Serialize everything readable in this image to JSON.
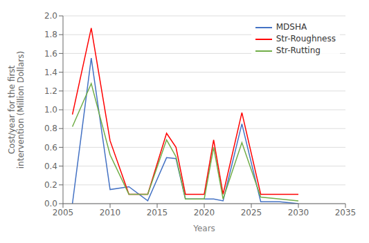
{
  "chart_data": {
    "type": "line",
    "x": [
      2006,
      2008,
      2010,
      2012,
      2014,
      2016,
      2017,
      2018,
      2020,
      2021,
      2022,
      2024,
      2026,
      2028,
      2030
    ],
    "series": [
      {
        "name": "MDSHA",
        "color": "#4472C4",
        "values": [
          0.0,
          1.55,
          0.15,
          0.18,
          0.03,
          0.49,
          0.48,
          0.05,
          0.05,
          0.05,
          0.03,
          0.85,
          0.02,
          0.02,
          0.0
        ]
      },
      {
        "name": "Str-Roughness",
        "color": "#FF0000",
        "values": [
          0.95,
          1.87,
          0.67,
          0.1,
          0.1,
          0.75,
          0.6,
          0.1,
          0.1,
          0.68,
          0.1,
          0.97,
          0.1,
          0.1,
          0.1
        ]
      },
      {
        "name": "Str-Rutting",
        "color": "#70AD47",
        "values": [
          0.82,
          1.28,
          0.52,
          0.1,
          0.1,
          0.68,
          0.5,
          0.05,
          0.05,
          0.6,
          0.05,
          0.65,
          0.07,
          0.05,
          0.03
        ]
      }
    ],
    "xlim": [
      2005,
      2035
    ],
    "ylim": [
      0.0,
      2.0
    ],
    "xticks": [
      2005,
      2010,
      2015,
      2020,
      2025,
      2030,
      2035
    ],
    "yticks": [
      {
        "value": 0.0,
        "label": "0.0"
      },
      0.2,
      0.4,
      0.6,
      0.8,
      {
        "value": 1.0,
        "label": "1.0"
      },
      1.2,
      1.4,
      1.6,
      1.8,
      {
        "value": 2.0,
        "label": "2.0"
      }
    ],
    "xlabel": "Years",
    "ylabel": "Cost/year for the first\nintervention (Million Dollars)",
    "grid": true,
    "legend": "upper right"
  }
}
